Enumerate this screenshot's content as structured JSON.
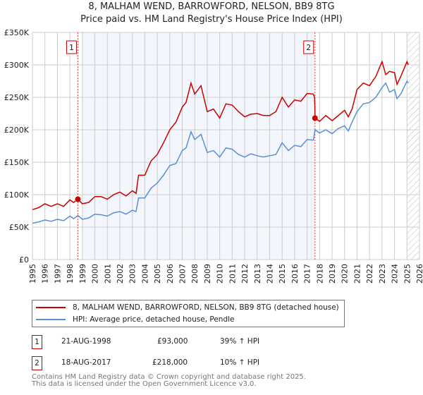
{
  "chart_data": {
    "type": "line",
    "title": "8, MALHAM WEND, BARROWFORD, NELSON, BB9 8TG",
    "subtitle": "Price paid vs. HM Land Registry's House Price Index (HPI)",
    "xlim": [
      1995,
      2026
    ],
    "ylim": [
      0,
      350000
    ],
    "x_ticks": [
      "1995",
      "1996",
      "1997",
      "1998",
      "1999",
      "2000",
      "2001",
      "2002",
      "2003",
      "2004",
      "2005",
      "2006",
      "2007",
      "2008",
      "2009",
      "2010",
      "2011",
      "2012",
      "2013",
      "2014",
      "2015",
      "2016",
      "2017",
      "2018",
      "2019",
      "2020",
      "2021",
      "2022",
      "2023",
      "2024",
      "2025",
      "2026"
    ],
    "y_ticks": [
      {
        "v": 0,
        "l": "£0"
      },
      {
        "v": 50000,
        "l": "£50K"
      },
      {
        "v": 100000,
        "l": "£100K"
      },
      {
        "v": 150000,
        "l": "£150K"
      },
      {
        "v": 200000,
        "l": "£200K"
      },
      {
        "v": 250000,
        "l": "£250K"
      },
      {
        "v": 300000,
        "l": "£300K"
      },
      {
        "v": 350000,
        "l": "£350K"
      }
    ],
    "grid": true,
    "shaded_range": [
      1999.0,
      2017.63
    ],
    "forecast_hatch_from": 2025.0,
    "series": [
      {
        "name": "8, MALHAM WEND, BARROWFORD, NELSON, BB9 8TG (detached house)",
        "color": "#cc0000",
        "x": [
          1995,
          1995.5,
          1996,
          1996.5,
          1997,
          1997.5,
          1998,
          1998.3,
          1998.64,
          1999,
          1999.5,
          2000,
          2000.5,
          2001,
          2001.5,
          2002,
          2002.5,
          2003,
          2003.3,
          2003.5,
          2004,
          2004.5,
          2005,
          2005.5,
          2006,
          2006.5,
          2007,
          2007.3,
          2007.7,
          2008,
          2008.5,
          2009,
          2009.5,
          2010,
          2010.5,
          2011,
          2011.5,
          2012,
          2012.5,
          2013,
          2013.5,
          2014,
          2014.5,
          2015,
          2015.5,
          2016,
          2016.5,
          2017,
          2017.5,
          2017.6,
          2017.64,
          2018,
          2018.5,
          2019,
          2019.5,
          2020,
          2020.3,
          2020.6,
          2021,
          2021.5,
          2022,
          2022.5,
          2023,
          2023.3,
          2023.6,
          2024,
          2024.2,
          2024.5,
          2025,
          2025.1
        ],
        "y": [
          77000,
          80000,
          86000,
          82000,
          86000,
          82000,
          92000,
          88000,
          93000,
          86000,
          88000,
          97000,
          97000,
          93000,
          100000,
          104000,
          98000,
          106000,
          102000,
          130000,
          130000,
          152000,
          162000,
          180000,
          200000,
          212000,
          235000,
          242000,
          272000,
          255000,
          268000,
          228000,
          232000,
          218000,
          240000,
          238000,
          228000,
          220000,
          224000,
          225000,
          222000,
          222000,
          228000,
          250000,
          235000,
          246000,
          244000,
          256000,
          255000,
          250000,
          218000,
          213000,
          222000,
          214000,
          222000,
          230000,
          220000,
          232000,
          262000,
          272000,
          268000,
          282000,
          305000,
          285000,
          290000,
          288000,
          270000,
          282000,
          305000,
          300000
        ]
      },
      {
        "name": "HPI: Average price, detached house, Pendle",
        "color": "#5b8fd4",
        "x": [
          1995,
          1995.5,
          1996,
          1996.5,
          1997,
          1997.5,
          1998,
          1998.3,
          1998.64,
          1999,
          1999.5,
          2000,
          2000.5,
          2001,
          2001.5,
          2002,
          2002.5,
          2003,
          2003.3,
          2003.5,
          2004,
          2004.5,
          2005,
          2005.5,
          2006,
          2006.5,
          2007,
          2007.3,
          2007.7,
          2008,
          2008.5,
          2009,
          2009.5,
          2010,
          2010.5,
          2011,
          2011.5,
          2012,
          2012.5,
          2013,
          2013.5,
          2014,
          2014.5,
          2015,
          2015.5,
          2016,
          2016.5,
          2017,
          2017.5,
          2017.64,
          2018,
          2018.5,
          2019,
          2019.5,
          2020,
          2020.3,
          2020.6,
          2021,
          2021.5,
          2022,
          2022.5,
          2023,
          2023.3,
          2023.6,
          2024,
          2024.2,
          2024.5,
          2025,
          2025.1
        ],
        "y": [
          56000,
          58000,
          61000,
          59000,
          62000,
          60000,
          67000,
          63000,
          68000,
          62000,
          64000,
          70000,
          69000,
          67000,
          72000,
          74000,
          70000,
          76000,
          74000,
          95000,
          95000,
          110000,
          118000,
          130000,
          145000,
          148000,
          168000,
          172000,
          197000,
          185000,
          193000,
          165000,
          168000,
          158000,
          172000,
          170000,
          162000,
          158000,
          163000,
          160000,
          158000,
          160000,
          162000,
          180000,
          168000,
          176000,
          174000,
          185000,
          184000,
          200000,
          195000,
          200000,
          194000,
          202000,
          206000,
          198000,
          212000,
          228000,
          240000,
          242000,
          250000,
          265000,
          272000,
          258000,
          262000,
          248000,
          255000,
          275000,
          272000
        ]
      }
    ],
    "markers": [
      {
        "id": "1",
        "x": 1998.64,
        "y": 93000
      },
      {
        "id": "2",
        "x": 2017.63,
        "y": 218000
      }
    ],
    "legend_position": "below"
  },
  "table": [
    {
      "num": "1",
      "date": "21-AUG-1998",
      "price": "£93,000",
      "hpi": "39% ↑ HPI"
    },
    {
      "num": "2",
      "date": "18-AUG-2017",
      "price": "£218,000",
      "hpi": "10% ↑ HPI"
    }
  ],
  "footer": [
    "Contains HM Land Registry data © Crown copyright and database right 2025.",
    "This data is licensed under the Open Government Licence v3.0."
  ]
}
